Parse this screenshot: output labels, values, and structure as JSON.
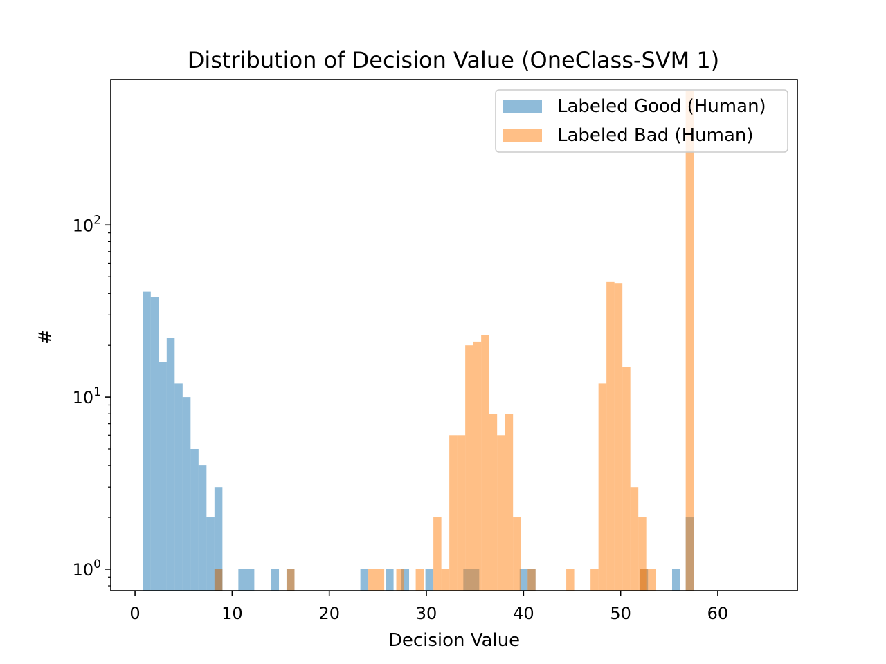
{
  "chart_data": {
    "type": "bar",
    "title": "Distribution of Decision Value (OneClass-SVM 1)",
    "xlabel": "Decision Value",
    "ylabel": "#",
    "xlim": [
      -2.5,
      68.2
    ],
    "ylim": [
      0.75,
      700
    ],
    "yscale": "log",
    "x_ticks": [
      0,
      10,
      20,
      30,
      40,
      50,
      60
    ],
    "y_ticks": [
      {
        "value": 1,
        "base": "10",
        "exp": "0"
      },
      {
        "value": 10,
        "base": "10",
        "exp": "1"
      },
      {
        "value": 100,
        "base": "10",
        "exp": "2"
      }
    ],
    "grid": false,
    "legend": {
      "loc": "upper right"
    },
    "series": [
      {
        "name": "Labeled Good (Human)",
        "color": "#1f77b4",
        "alpha": 0.5,
        "bins": [
          [
            0.8,
            1.62,
            41
          ],
          [
            1.62,
            2.44,
            38
          ],
          [
            2.44,
            3.26,
            16
          ],
          [
            3.26,
            4.08,
            22
          ],
          [
            4.08,
            4.9,
            12
          ],
          [
            4.9,
            5.72,
            10
          ],
          [
            5.72,
            6.54,
            5
          ],
          [
            6.54,
            7.36,
            4
          ],
          [
            7.36,
            8.18,
            2
          ],
          [
            8.18,
            9.0,
            3
          ],
          [
            8.18,
            9.0,
            1
          ],
          [
            10.64,
            12.28,
            1
          ],
          [
            14.0,
            14.82,
            1
          ],
          [
            15.6,
            16.42,
            1
          ],
          [
            23.2,
            24.02,
            1
          ],
          [
            25.8,
            26.62,
            1
          ],
          [
            27.4,
            28.22,
            1
          ],
          [
            29.9,
            30.72,
            1
          ],
          [
            33.8,
            35.44,
            1
          ],
          [
            39.6,
            40.42,
            1
          ],
          [
            40.42,
            41.24,
            1
          ],
          [
            52.0,
            52.82,
            1
          ],
          [
            55.3,
            56.12,
            1
          ],
          [
            56.7,
            57.52,
            2
          ]
        ]
      },
      {
        "name": "Labeled Bad (Human)",
        "color": "#ff7f0e",
        "alpha": 0.5,
        "bins": [
          [
            8.18,
            9.0,
            1
          ],
          [
            15.6,
            16.42,
            1
          ],
          [
            24.02,
            25.66,
            1
          ],
          [
            26.9,
            27.72,
            1
          ],
          [
            28.9,
            29.72,
            1
          ],
          [
            30.72,
            31.54,
            2
          ],
          [
            31.54,
            32.36,
            1
          ],
          [
            32.36,
            33.18,
            6
          ],
          [
            33.18,
            34.0,
            6
          ],
          [
            34.0,
            34.82,
            20
          ],
          [
            34.82,
            35.64,
            21
          ],
          [
            35.64,
            36.46,
            23
          ],
          [
            36.46,
            37.28,
            8
          ],
          [
            37.28,
            38.1,
            6
          ],
          [
            38.1,
            38.92,
            8
          ],
          [
            38.92,
            39.74,
            2
          ],
          [
            40.42,
            41.24,
            1
          ],
          [
            44.4,
            45.22,
            1
          ],
          [
            46.9,
            47.72,
            1
          ],
          [
            47.72,
            48.54,
            12
          ],
          [
            48.54,
            49.36,
            47
          ],
          [
            49.36,
            50.18,
            46
          ],
          [
            50.18,
            51.0,
            15
          ],
          [
            51.0,
            51.82,
            3
          ],
          [
            51.82,
            52.64,
            2
          ],
          [
            52.0,
            52.82,
            1
          ],
          [
            52.82,
            53.64,
            1
          ],
          [
            56.7,
            57.52,
            600
          ]
        ]
      }
    ]
  }
}
